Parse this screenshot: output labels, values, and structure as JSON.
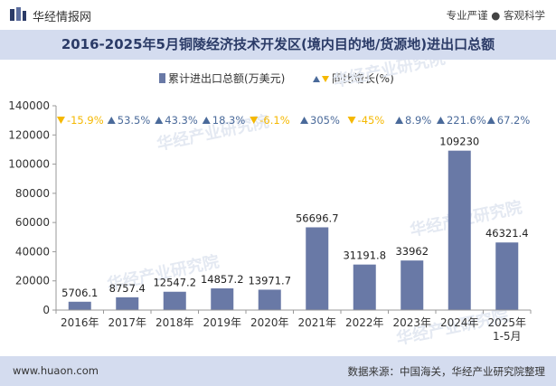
{
  "header": {
    "site_name": "华经情报网",
    "tags": "专业严谨 ● 客观科学"
  },
  "footer": {
    "website": "www.huaon.com",
    "source": "数据来源：中国海关，华经产业研究院整理"
  },
  "watermark": "华经产业研究院",
  "colors": {
    "bar": "#6979a6",
    "up": "#4a6a9a",
    "down": "#f5b800",
    "title_band": "#d4dcef",
    "title_text": "#2b3b67"
  },
  "chart_data": {
    "type": "bar",
    "title": "2016-2025年5月铜陵经济技术开发区(境内目的地/货源地)进出口总额",
    "categories": [
      "2016年",
      "2017年",
      "2018年",
      "2019年",
      "2020年",
      "2021年",
      "2022年",
      "2023年",
      "2024年",
      "2025年\n1-5月"
    ],
    "series": [
      {
        "name": "累计进出口总额(万美元)",
        "values": [
          5706.1,
          8757.4,
          12547.2,
          14857.2,
          13971.7,
          56696.7,
          31191.8,
          33962,
          109230,
          46321.4
        ]
      }
    ],
    "bar_labels": [
      "5706.1",
      "8757.4",
      "12547.2",
      "14857.2",
      "13971.7",
      "56696.7",
      "31191.8",
      "33962",
      "109230",
      "46321.4"
    ],
    "growth": {
      "name": "同比增长(%)",
      "labels": [
        "-15.9%",
        "53.5%",
        "43.3%",
        "18.3%",
        "-6.1%",
        "305%",
        "-45%",
        "8.9%",
        "221.6%",
        "67.2%"
      ],
      "direction": [
        "down",
        "up",
        "up",
        "up",
        "down",
        "up",
        "down",
        "up",
        "up",
        "up"
      ]
    },
    "ylim": [
      0,
      140000
    ],
    "yticks": [
      "0",
      "20000",
      "40000",
      "60000",
      "80000",
      "100000",
      "120000",
      "140000"
    ],
    "grid": false,
    "legend_position": "top-center"
  }
}
